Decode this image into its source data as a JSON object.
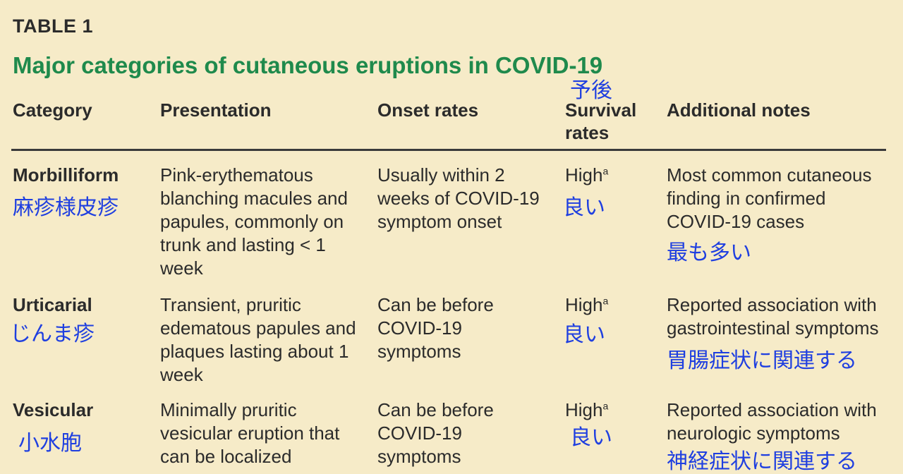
{
  "table_label": "TABLE 1",
  "title": "Major categories of cutaneous eruptions in COVID-19",
  "headers": {
    "category": "Category",
    "presentation": "Presentation",
    "onset": "Onset rates",
    "survival_line1": "Survival",
    "survival_line2": "rates",
    "notes": "Additional notes",
    "survival_annotation": "予後"
  },
  "rows": [
    {
      "category": "Morbilliform",
      "category_annotation": "麻疹様皮疹",
      "presentation": "Pink-erythematous blanching macules and papules, commonly on trunk and lasting < 1 week",
      "onset": "Usually within 2 weeks of COVID-19 symptom onset",
      "survival": "High",
      "survival_sup": "a",
      "survival_annotation": "良い",
      "notes": "Most common cutaneous finding in confirmed COVID-19 cases",
      "notes_annotation": "最も多い"
    },
    {
      "category": "Urticarial",
      "category_annotation": "じんま疹",
      "presentation": "Transient, pruritic edematous papules and plaques lasting about 1 week",
      "onset": "Can be before COVID-19 symptoms",
      "survival": "High",
      "survival_sup": "a",
      "survival_annotation": "良い",
      "notes": "Reported association with gastrointestinal symptoms",
      "notes_annotation": "胃腸症状に関連する"
    },
    {
      "category": "Vesicular",
      "category_annotation": "小水胞",
      "presentation": "Minimally pruritic vesicular eruption that can be localized",
      "onset": "Can be before COVID-19 symptoms",
      "survival": "High",
      "survival_sup": "a",
      "survival_annotation": "良い",
      "notes": "Reported association with neurologic symptoms",
      "notes_annotation": "神経症状に関連する"
    }
  ]
}
